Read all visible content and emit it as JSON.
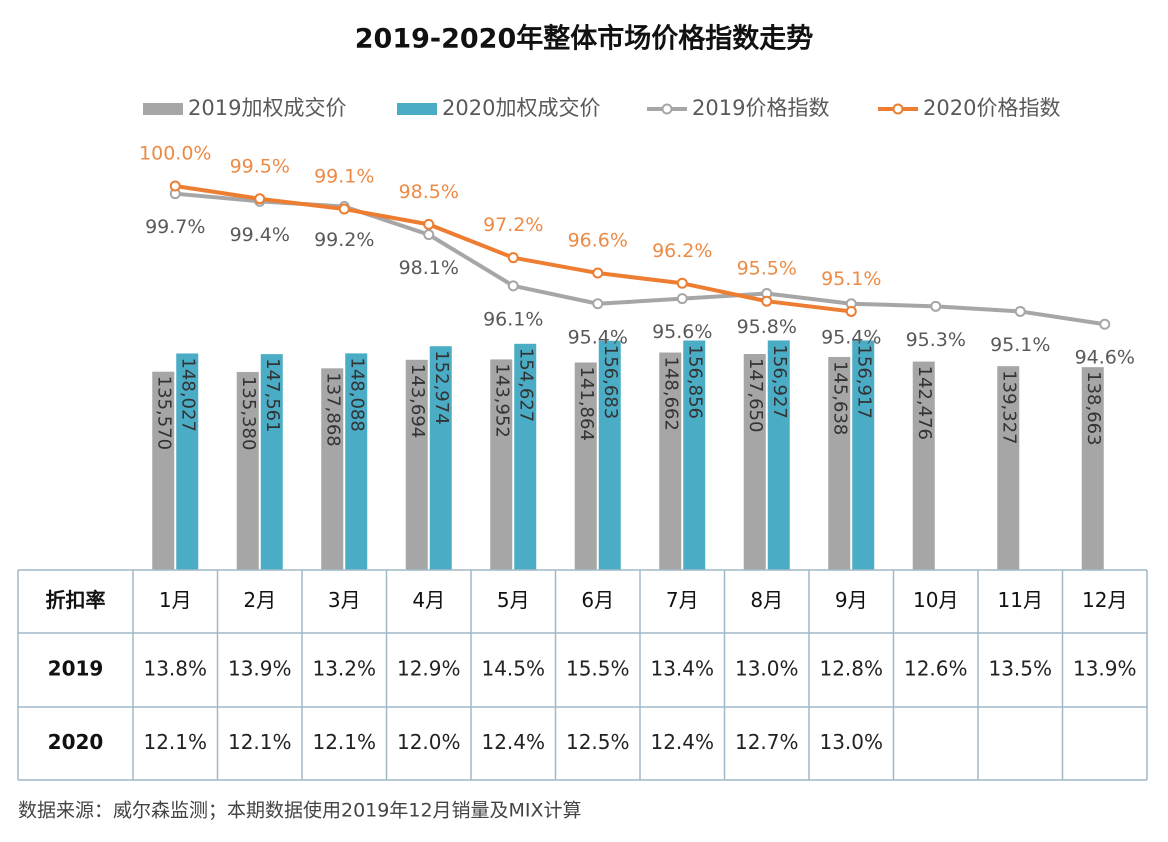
{
  "chart_data": {
    "type": "bar",
    "title": "2019-2020年整体市场价格指数走势",
    "categories": [
      "1月",
      "2月",
      "3月",
      "4月",
      "5月",
      "6月",
      "7月",
      "8月",
      "9月",
      "10月",
      "11月",
      "12月"
    ],
    "ylim": [
      0,
      350000
    ],
    "y2lim": [
      85,
      105
    ],
    "series": [
      {
        "name": "2019加权成交价",
        "type": "bar",
        "color": "#a6a6a6",
        "values": [
          135570,
          135380,
          137868,
          143694,
          143952,
          141864,
          148662,
          147650,
          145638,
          142476,
          139327,
          138663
        ],
        "value_labels": [
          "135,570",
          "135,380",
          "137,868",
          "143,694",
          "143,952",
          "141,864",
          "148,662",
          "147,650",
          "145,638",
          "142,476",
          "139,327",
          "138,663"
        ]
      },
      {
        "name": "2020加权成交价",
        "type": "bar",
        "color": "#4bacc6",
        "values": [
          148027,
          147561,
          148088,
          152974,
          154627,
          156683,
          156856,
          156927,
          156917,
          null,
          null,
          null
        ],
        "value_labels": [
          "148,027",
          "147,561",
          "148,088",
          "152,974",
          "154,627",
          "156,683",
          "156,856",
          "156,927",
          "156,917",
          null,
          null,
          null
        ]
      },
      {
        "name": "2019价格指数",
        "type": "line",
        "axis": "y2",
        "color": "#a6a6a6",
        "label_color": "#595959",
        "values": [
          99.7,
          99.4,
          99.2,
          98.1,
          96.1,
          95.4,
          95.6,
          95.8,
          95.4,
          95.3,
          95.1,
          94.6
        ],
        "value_labels": [
          "99.7%",
          "99.4%",
          "99.2%",
          "98.1%",
          "96.1%",
          "95.4%",
          "95.6%",
          "95.8%",
          "95.4%",
          "95.3%",
          "95.1%",
          "94.6%"
        ]
      },
      {
        "name": "2020价格指数",
        "type": "line",
        "axis": "y2",
        "color": "#ed7d31",
        "label_color": "#ed8a45",
        "values": [
          100.0,
          99.5,
          99.1,
          98.5,
          97.2,
          96.6,
          96.2,
          95.5,
          95.1,
          null,
          null,
          null
        ],
        "value_labels": [
          "100.0%",
          "99.5%",
          "99.1%",
          "98.5%",
          "97.2%",
          "96.6%",
          "96.2%",
          "95.5%",
          "95.1%",
          null,
          null,
          null
        ]
      }
    ]
  },
  "table": {
    "corner": "折扣率",
    "rows": [
      {
        "label": "2019",
        "cells": [
          "13.8%",
          "13.9%",
          "13.2%",
          "12.9%",
          "14.5%",
          "15.5%",
          "13.4%",
          "13.0%",
          "12.8%",
          "12.6%",
          "13.5%",
          "13.9%"
        ]
      },
      {
        "label": "2020",
        "cells": [
          "12.1%",
          "12.1%",
          "12.1%",
          "12.0%",
          "12.4%",
          "12.5%",
          "12.4%",
          "12.7%",
          "13.0%"
        ]
      }
    ]
  },
  "source": "数据来源：威尔森监测；本期数据使用2019年12月销量及MIX计算"
}
